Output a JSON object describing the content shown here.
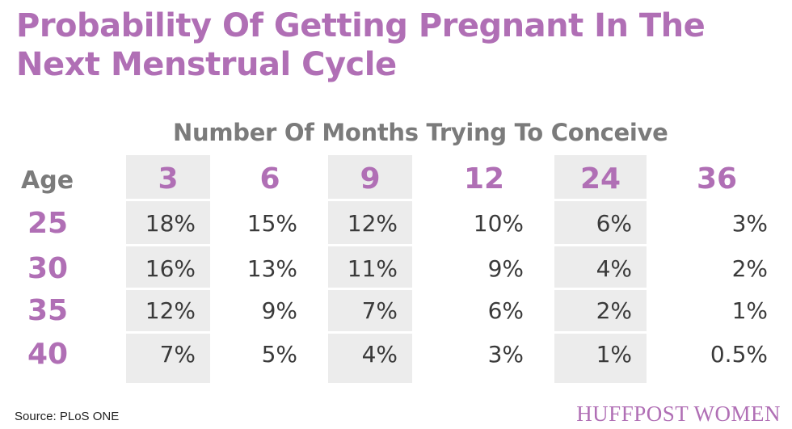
{
  "title": "Probability Of Getting Pregnant In The Next Menstrual Cycle",
  "subheader": "Number Of Months Trying To Conceive",
  "age_label": "Age",
  "source": "Source: PLoS ONE",
  "brand": "HUFFPOST WOMEN",
  "colors": {
    "accent": "#b06fb5",
    "header_gray": "#7b7b7b",
    "band": "#ececec",
    "text": "#3a3a3a"
  },
  "chart_data": {
    "type": "table",
    "title": "Probability Of Getting Pregnant In The Next Menstrual Cycle",
    "column_group_label": "Number Of Months Trying To Conceive",
    "row_label": "Age",
    "columns": [
      "3",
      "6",
      "9",
      "12",
      "24",
      "36"
    ],
    "rows": [
      {
        "age": "25",
        "values": [
          "18%",
          "15%",
          "12%",
          "10%",
          "6%",
          "3%"
        ]
      },
      {
        "age": "30",
        "values": [
          "16%",
          "13%",
          "11%",
          "9%",
          "4%",
          "2%"
        ]
      },
      {
        "age": "35",
        "values": [
          "12%",
          "9%",
          "7%",
          "6%",
          "2%",
          "1%"
        ]
      },
      {
        "age": "40",
        "values": [
          "7%",
          "5%",
          "4%",
          "3%",
          "1%",
          "0.5%"
        ]
      }
    ]
  }
}
